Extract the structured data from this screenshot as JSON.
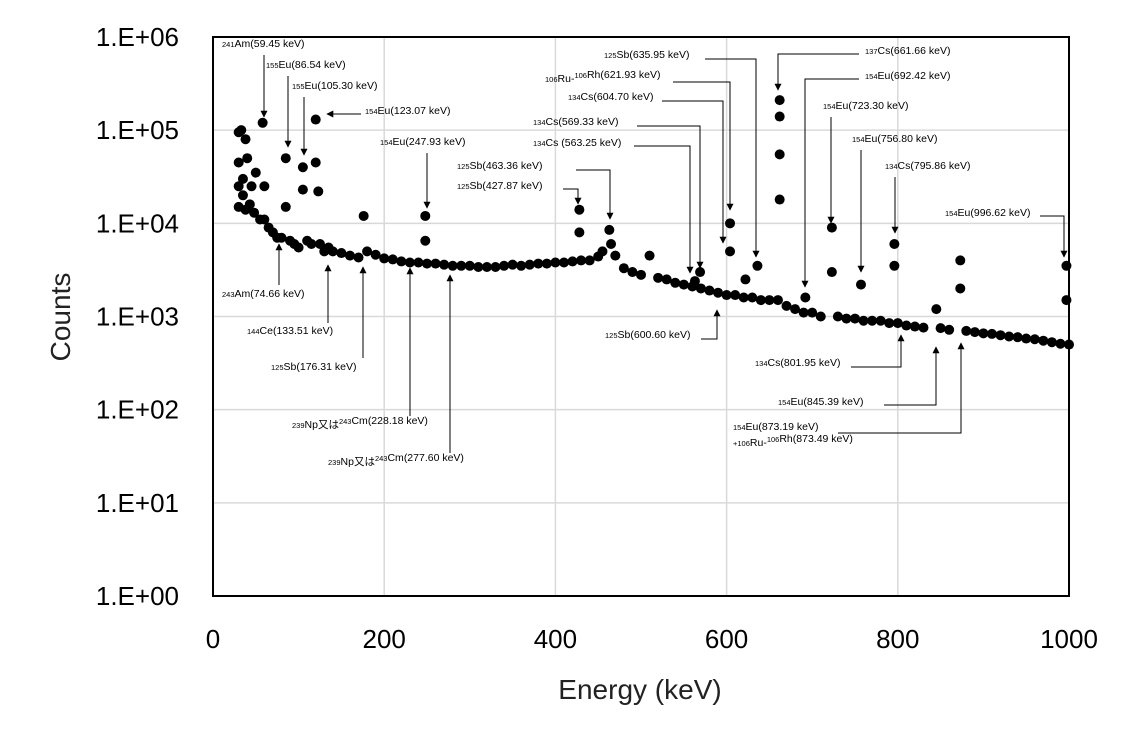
{
  "chart_data": {
    "type": "scatter",
    "title": "",
    "xlabel": "Energy (keV)",
    "ylabel": "Counts",
    "xlim": [
      0,
      1000
    ],
    "ylim": [
      1,
      1000000
    ],
    "y_scale": "log",
    "grid": true,
    "x_ticks": [
      "0",
      "200",
      "400",
      "600",
      "800",
      "1000"
    ],
    "y_ticks": [
      "1.E+00",
      "1.E+01",
      "1.E+02",
      "1.E+03",
      "1.E+04",
      "1.E+05",
      "1.E+06"
    ],
    "marker_color": "#000000",
    "series": [
      {
        "points": [
          [
            30,
            15000
          ],
          [
            30,
            25000
          ],
          [
            30,
            45000
          ],
          [
            30,
            95000
          ],
          [
            33,
            100000
          ],
          [
            35,
            20000
          ],
          [
            35,
            30000
          ],
          [
            38,
            14000
          ],
          [
            38,
            80000
          ],
          [
            40,
            50000
          ],
          [
            43,
            16000
          ],
          [
            45,
            25000
          ],
          [
            48,
            13000
          ],
          [
            50,
            35000
          ],
          [
            55,
            11000
          ],
          [
            58,
            120000
          ],
          [
            60,
            11000
          ],
          [
            60,
            25000
          ],
          [
            65,
            9000
          ],
          [
            70,
            8000
          ],
          [
            75,
            7000
          ],
          [
            80,
            7000
          ],
          [
            85,
            50000
          ],
          [
            85,
            15000
          ],
          [
            90,
            6500
          ],
          [
            95,
            6000
          ],
          [
            100,
            5500
          ],
          [
            105,
            40000
          ],
          [
            105,
            23000
          ],
          [
            110,
            6500
          ],
          [
            115,
            6000
          ],
          [
            120,
            130000
          ],
          [
            120,
            45000
          ],
          [
            123,
            22000
          ],
          [
            125,
            6000
          ],
          [
            130,
            5000
          ],
          [
            135,
            5500
          ],
          [
            140,
            5000
          ],
          [
            150,
            4800
          ],
          [
            160,
            4500
          ],
          [
            170,
            4300
          ],
          [
            176,
            12000
          ],
          [
            180,
            5000
          ],
          [
            190,
            4600
          ],
          [
            200,
            4200
          ],
          [
            210,
            4100
          ],
          [
            220,
            3900
          ],
          [
            230,
            3800
          ],
          [
            240,
            3800
          ],
          [
            248,
            12000
          ],
          [
            248,
            6500
          ],
          [
            250,
            3700
          ],
          [
            260,
            3700
          ],
          [
            270,
            3600
          ],
          [
            280,
            3500
          ],
          [
            290,
            3500
          ],
          [
            300,
            3500
          ],
          [
            310,
            3400
          ],
          [
            320,
            3400
          ],
          [
            330,
            3400
          ],
          [
            340,
            3500
          ],
          [
            350,
            3600
          ],
          [
            360,
            3500
          ],
          [
            370,
            3600
          ],
          [
            380,
            3700
          ],
          [
            390,
            3700
          ],
          [
            400,
            3800
          ],
          [
            410,
            3800
          ],
          [
            420,
            3900
          ],
          [
            428,
            14000
          ],
          [
            428,
            8000
          ],
          [
            430,
            4000
          ],
          [
            440,
            4000
          ],
          [
            450,
            4400
          ],
          [
            455,
            5000
          ],
          [
            463,
            8500
          ],
          [
            465,
            6000
          ],
          [
            470,
            4500
          ],
          [
            480,
            3300
          ],
          [
            490,
            3000
          ],
          [
            500,
            2800
          ],
          [
            510,
            4500
          ],
          [
            520,
            2600
          ],
          [
            530,
            2500
          ],
          [
            540,
            2300
          ],
          [
            550,
            2200
          ],
          [
            560,
            2100
          ],
          [
            563,
            2400
          ],
          [
            569,
            3000
          ],
          [
            570,
            2000
          ],
          [
            580,
            1900
          ],
          [
            590,
            1800
          ],
          [
            600,
            1700
          ],
          [
            604,
            5000
          ],
          [
            604,
            10000
          ],
          [
            610,
            1700
          ],
          [
            620,
            1600
          ],
          [
            622,
            2500
          ],
          [
            630,
            1600
          ],
          [
            636,
            3500
          ],
          [
            640,
            1500
          ],
          [
            650,
            1500
          ],
          [
            660,
            1500
          ],
          [
            662,
            210000
          ],
          [
            662,
            140000
          ],
          [
            662,
            55000
          ],
          [
            662,
            18000
          ],
          [
            670,
            1300
          ],
          [
            680,
            1200
          ],
          [
            690,
            1100
          ],
          [
            692,
            1600
          ],
          [
            700,
            1100
          ],
          [
            710,
            1000
          ],
          [
            723,
            9000
          ],
          [
            723,
            3000
          ],
          [
            730,
            1000
          ],
          [
            740,
            950
          ],
          [
            750,
            950
          ],
          [
            757,
            2200
          ],
          [
            760,
            900
          ],
          [
            770,
            900
          ],
          [
            780,
            900
          ],
          [
            790,
            850
          ],
          [
            796,
            6000
          ],
          [
            796,
            3500
          ],
          [
            800,
            850
          ],
          [
            810,
            800
          ],
          [
            820,
            780
          ],
          [
            830,
            760
          ],
          [
            845,
            1200
          ],
          [
            850,
            750
          ],
          [
            860,
            720
          ],
          [
            873,
            4000
          ],
          [
            873,
            2000
          ],
          [
            880,
            700
          ],
          [
            890,
            680
          ],
          [
            900,
            660
          ],
          [
            910,
            650
          ],
          [
            920,
            630
          ],
          [
            930,
            610
          ],
          [
            940,
            600
          ],
          [
            950,
            580
          ],
          [
            960,
            570
          ],
          [
            970,
            550
          ],
          [
            980,
            530
          ],
          [
            990,
            510
          ],
          [
            997,
            3500
          ],
          [
            997,
            1500
          ],
          [
            1000,
            500
          ]
        ]
      }
    ],
    "annotations": [
      {
        "sup": "241",
        "nuclide": "Am",
        "energy": "(59.45 keV)"
      },
      {
        "sup": "155",
        "nuclide": "Eu",
        "energy": "(86.54 keV)"
      },
      {
        "sup": "155",
        "nuclide": "Eu",
        "energy": "(105.30 keV)"
      },
      {
        "sup": "154",
        "nuclide": "Eu",
        "energy": "(123.07 keV)"
      },
      {
        "sup": "154",
        "nuclide": "Eu",
        "energy": "(247.93 keV)"
      },
      {
        "sup": "243",
        "nuclide": "Am",
        "energy": "(74.66 keV)"
      },
      {
        "sup": "144",
        "nuclide": "Ce",
        "energy": "(133.51 keV)"
      },
      {
        "sup": "125",
        "nuclide": "Sb",
        "energy": "(176.31 keV)"
      },
      {
        "sup": "239",
        "nuclide": "Np又は",
        "sup2": "243",
        "nuclide2": "Cm",
        "energy": "(228.18 keV)"
      },
      {
        "sup": "239",
        "nuclide": "Np又は",
        "sup2": "243",
        "nuclide2": "Cm",
        "energy": "(277.60 keV)"
      },
      {
        "sup": "125",
        "nuclide": "Sb",
        "energy": "(463.36 keV)"
      },
      {
        "sup": "125",
        "nuclide": "Sb",
        "energy": "(427.87 keV)"
      },
      {
        "sup": "134",
        "nuclide": "Cs",
        "energy": "(569.33 keV)"
      },
      {
        "sup": "134",
        "nuclide": "Cs",
        "energy": " (563.25 keV)"
      },
      {
        "sup": "125",
        "nuclide": "Sb",
        "energy": "(635.95 keV)"
      },
      {
        "sup": "106",
        "nuclide": "Ru-",
        "sup2": "106",
        "nuclide2": "Rh",
        "energy": "(621.93 keV)"
      },
      {
        "sup": "134",
        "nuclide": "Cs",
        "energy": "(604.70 keV)"
      },
      {
        "sup": "125",
        "nuclide": "Sb",
        "energy": "(600.60 keV)"
      },
      {
        "sup": "137",
        "nuclide": "Cs",
        "energy": "(661.66 keV)"
      },
      {
        "sup": "154",
        "nuclide": "Eu",
        "energy": "(692.42 keV)"
      },
      {
        "sup": "154",
        "nuclide": "Eu",
        "energy": "(723.30 keV)"
      },
      {
        "sup": "154",
        "nuclide": "Eu",
        "energy": "(756.80 keV)"
      },
      {
        "sup": "134",
        "nuclide": "Cs",
        "energy": "(795.86 keV)"
      },
      {
        "sup": "154",
        "nuclide": "Eu",
        "energy": "(996.62 keV)"
      },
      {
        "sup": "134",
        "nuclide": "Cs",
        "energy": "(801.95 keV)"
      },
      {
        "sup": "154",
        "nuclide": "Eu",
        "energy": "(845.39 keV)"
      },
      {
        "sup": "154",
        "nuclide": "Eu",
        "energy": "(873.19 keV)"
      },
      {
        "sup": "+106",
        "nuclide": "Ru-",
        "sup2": "106",
        "nuclide2": "Rh",
        "energy": "(873.49 keV)"
      }
    ]
  }
}
